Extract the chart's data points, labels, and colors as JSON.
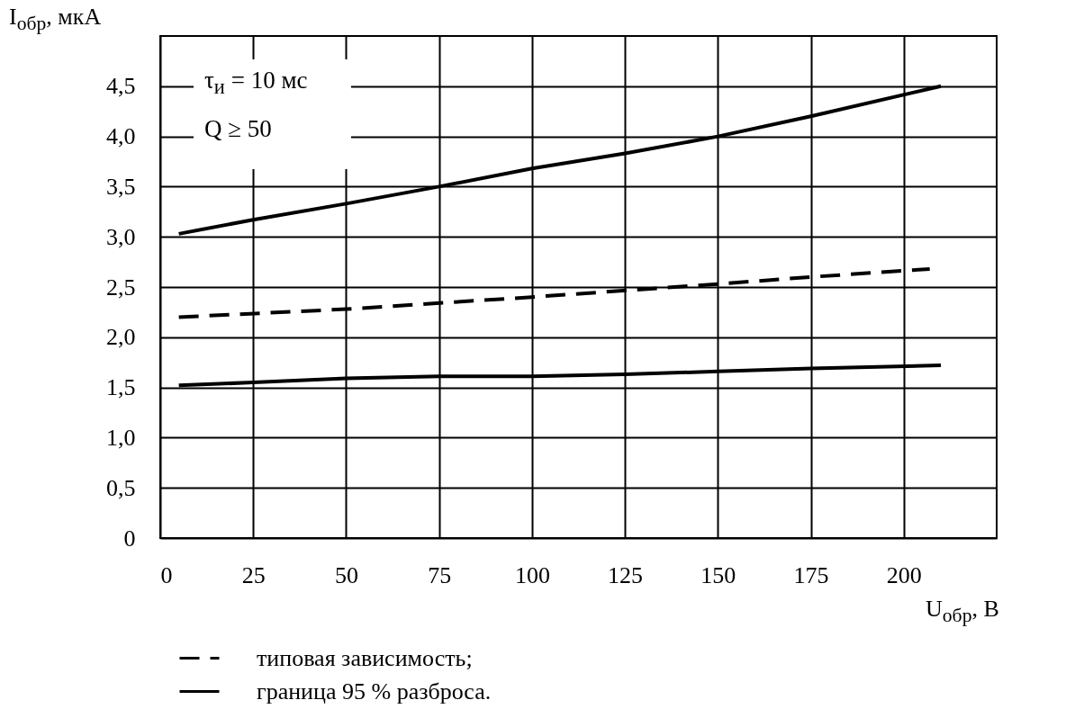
{
  "chart_data": {
    "type": "line",
    "xlabel": "U$_{обр}$, В",
    "ylabel": "I$_{обр}$, мкА",
    "annotations": [
      "τ$_{и}$ = 10 мс",
      "Q ≥ 50"
    ],
    "xlim": [
      0,
      225
    ],
    "xticks": [
      0,
      25,
      50,
      75,
      100,
      125,
      150,
      175,
      200
    ],
    "ylim": [
      0,
      5
    ],
    "yticks": [
      0,
      {
        "value": 0.5,
        "label": "0,5"
      },
      {
        "value": 1,
        "label": "1,0"
      },
      {
        "value": 1.5,
        "label": "1,5"
      },
      {
        "value": 2,
        "label": "2,0"
      },
      {
        "value": 2.5,
        "label": "2,5"
      },
      {
        "value": 3,
        "label": "3,0"
      },
      {
        "value": 3.5,
        "label": "3,5"
      },
      {
        "value": 4,
        "label": "4,0"
      },
      {
        "value": 4.5,
        "label": "4,5"
      }
    ],
    "grid": true,
    "legend": "bottom",
    "series": [
      {
        "name": "типовая зависимость;",
        "color": "#000000",
        "line_style": "dashed",
        "x": [
          5,
          50,
          100,
          150,
          175,
          207
        ],
        "values": [
          2.2,
          2.28,
          2.4,
          2.53,
          2.6,
          2.68
        ]
      },
      {
        "name": "граница 95 % разброса.",
        "color": "#000000",
        "line_style": "solid",
        "x": [
          5,
          25,
          50,
          75,
          100,
          125,
          150,
          175,
          210
        ],
        "values": [
          3.03,
          3.17,
          3.33,
          3.5,
          3.68,
          3.83,
          4.0,
          4.2,
          4.5
        ]
      },
      {
        "color": "#000000",
        "line_style": "solid",
        "x": [
          5,
          25,
          50,
          75,
          100,
          125,
          150,
          175,
          210
        ],
        "values": [
          1.52,
          1.55,
          1.59,
          1.61,
          1.61,
          1.63,
          1.66,
          1.69,
          1.72
        ]
      }
    ]
  }
}
